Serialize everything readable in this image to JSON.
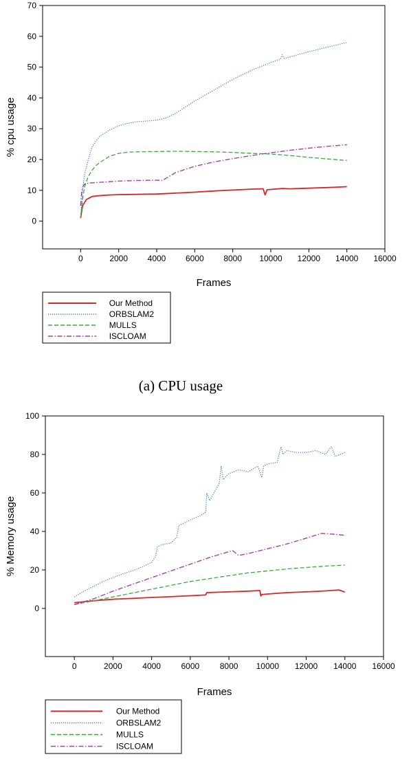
{
  "colors": {
    "our_method": "#d62728",
    "orbslam2": "#3a7bb8",
    "mulls": "#3ea53e",
    "iscloam": "#a040a8"
  },
  "chart_data": [
    {
      "type": "line",
      "caption": "(a) CPU usage",
      "xlabel": "Frames",
      "ylabel": "% cpu usage",
      "xlim": [
        -2000,
        16000
      ],
      "ylim": [
        -9,
        70
      ],
      "xticks": [
        "0",
        "2000",
        "4000",
        "6000",
        "8000",
        "10000",
        "12000",
        "14000",
        "16000"
      ],
      "yticks": [
        "0",
        "10",
        "20",
        "30",
        "40",
        "50",
        "60",
        "70"
      ],
      "legend_position": "below",
      "series": [
        {
          "name": "Our Method",
          "style": "solid",
          "x": [
            0,
            100,
            300,
            600,
            1000,
            1500,
            2000,
            3000,
            4000,
            5000,
            6000,
            7000,
            8000,
            9000,
            9600,
            9700,
            9800,
            10000,
            10600,
            11000,
            12000,
            13000,
            14000
          ],
          "y": [
            1,
            5,
            7,
            8,
            8.3,
            8.5,
            8.6,
            8.7,
            8.8,
            9.1,
            9.4,
            9.8,
            10.1,
            10.4,
            10.5,
            8.5,
            10.2,
            10.3,
            10.6,
            10.5,
            10.7,
            10.9,
            11.2
          ]
        },
        {
          "name": "ORBSLAM2",
          "style": "dotted",
          "x": [
            0,
            100,
            200,
            400,
            600,
            800,
            1000,
            1500,
            2000,
            2500,
            3000,
            3500,
            4000,
            4500,
            5000,
            5500,
            6000,
            7000,
            8000,
            9000,
            10000,
            10500,
            10600,
            10700,
            11000,
            12000,
            13000,
            14000
          ],
          "y": [
            1,
            10,
            15,
            20,
            24,
            26,
            27.5,
            29.5,
            31,
            31.8,
            32.3,
            32.5,
            32.8,
            33.5,
            35,
            37,
            39,
            42.5,
            46,
            49,
            51.5,
            52.5,
            54,
            52.8,
            53.3,
            55,
            56.5,
            58
          ]
        },
        {
          "name": "MULLS",
          "style": "dashed",
          "x": [
            0,
            100,
            200,
            400,
            600,
            800,
            1000,
            1500,
            2000,
            2500,
            3000,
            4000,
            5000,
            6000,
            7000,
            8000,
            9000,
            10000,
            11000,
            12000,
            13000,
            14000
          ],
          "y": [
            1,
            7,
            11,
            14.5,
            16.5,
            18,
            19,
            21,
            22,
            22.4,
            22.5,
            22.6,
            22.7,
            22.6,
            22.5,
            22.3,
            22,
            21.8,
            21.3,
            20.7,
            20.2,
            19.7
          ]
        },
        {
          "name": "ISCLOAM",
          "style": "dashdot",
          "x": [
            0,
            50,
            100,
            200,
            300,
            500,
            1000,
            2000,
            3000,
            4000,
            4300,
            5000,
            6000,
            7000,
            8000,
            9000,
            10000,
            11000,
            12000,
            13000,
            14000
          ],
          "y": [
            5,
            9,
            11,
            12,
            12.2,
            12.4,
            12.6,
            13,
            13.2,
            13.3,
            13.2,
            15.8,
            17.8,
            19.2,
            20.3,
            21.3,
            22.2,
            23,
            23.7,
            24.3,
            24.8
          ]
        }
      ]
    },
    {
      "type": "line",
      "caption": "",
      "xlabel": "Frames",
      "ylabel": "% Memory usage",
      "xlim": [
        -1500,
        16000
      ],
      "ylim": [
        -25,
        100
      ],
      "xticks": [
        "0",
        "2000",
        "4000",
        "6000",
        "8000",
        "10000",
        "12000",
        "14000",
        "16000"
      ],
      "yticks": [
        "0",
        "20",
        "40",
        "60",
        "80",
        "100"
      ],
      "legend_position": "below",
      "series": [
        {
          "name": "Our Method",
          "style": "solid",
          "x": [
            0,
            1000,
            2000,
            3000,
            4000,
            5000,
            6000,
            6800,
            6850,
            7000,
            8000,
            9000,
            9600,
            9650,
            9700,
            10000,
            11000,
            12000,
            13000,
            13700,
            14000
          ],
          "y": [
            3,
            4,
            4.8,
            5.2,
            5.7,
            6.1,
            6.6,
            7,
            8.2,
            8.3,
            8.6,
            9,
            9.3,
            6.5,
            7.2,
            7.5,
            8.2,
            8.6,
            9.1,
            9.6,
            8.5
          ]
        },
        {
          "name": "ORBSLAM2",
          "style": "dotted",
          "x": [
            0,
            500,
            1000,
            1500,
            2000,
            2500,
            3000,
            3500,
            4000,
            4200,
            4300,
            4500,
            5000,
            5300,
            5400,
            5600,
            6000,
            6500,
            6800,
            6850,
            7000,
            7500,
            7600,
            7700,
            8000,
            8500,
            9000,
            9500,
            9700,
            9800,
            10000,
            10500,
            10700,
            10800,
            11000,
            11500,
            12000,
            12500,
            13000,
            13300,
            13500,
            14000
          ],
          "y": [
            6,
            9,
            11.5,
            14,
            16,
            18,
            19.5,
            21.5,
            24,
            27,
            32,
            33,
            34,
            37,
            43,
            44,
            46,
            48,
            50,
            60,
            56,
            65,
            74,
            67,
            70,
            72,
            71,
            74,
            68,
            74,
            75,
            76,
            84,
            80,
            82,
            81,
            81,
            82,
            80,
            84,
            79,
            81
          ]
        },
        {
          "name": "MULLS",
          "style": "dashed",
          "x": [
            0,
            1000,
            2000,
            3000,
            4000,
            5000,
            6000,
            7000,
            8000,
            9000,
            10000,
            11000,
            12000,
            13000,
            14000
          ],
          "y": [
            2,
            4,
            6,
            8,
            10,
            12,
            14,
            15.5,
            17,
            18.5,
            19.5,
            20.5,
            21.3,
            22,
            22.5
          ]
        },
        {
          "name": "ISCLOAM",
          "style": "dashdot",
          "x": [
            0,
            1000,
            2000,
            3000,
            4000,
            5000,
            6000,
            7000,
            8000,
            8200,
            8500,
            9000,
            10000,
            11000,
            12000,
            12800,
            13500,
            14000
          ],
          "y": [
            2,
            5,
            9,
            12.5,
            16,
            19.5,
            23,
            26.5,
            29.5,
            30,
            27.5,
            28.5,
            31,
            33.5,
            36.5,
            39,
            38.5,
            38
          ]
        }
      ]
    }
  ]
}
